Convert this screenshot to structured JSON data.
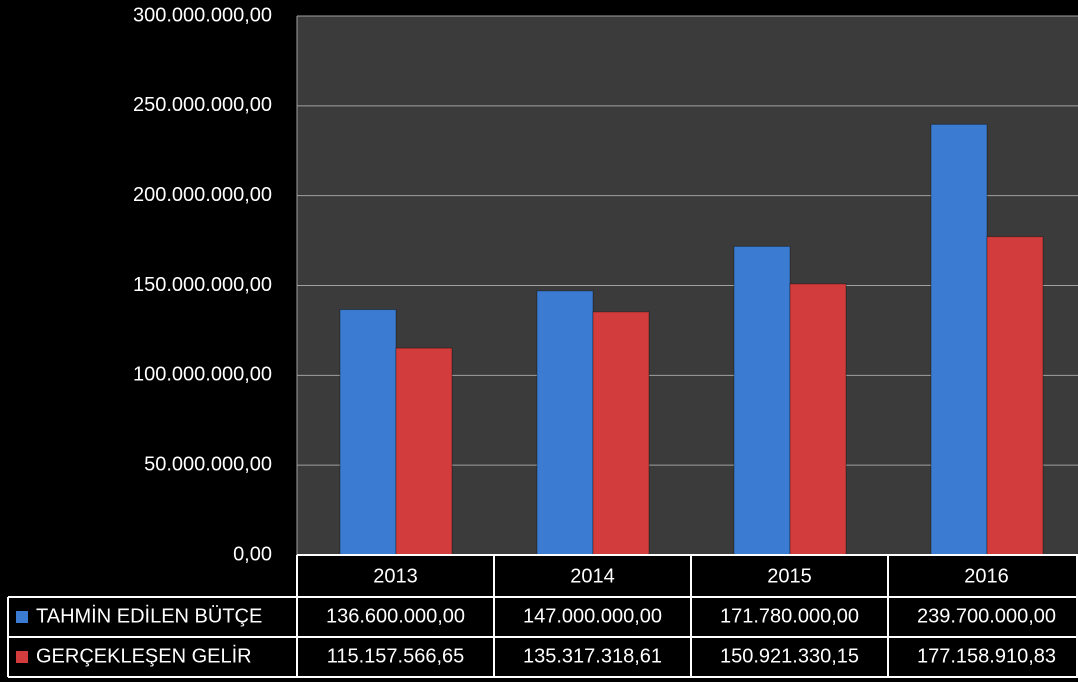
{
  "chart_data": {
    "type": "bar",
    "categories": [
      "2013",
      "2014",
      "2015",
      "2016"
    ],
    "series": [
      {
        "name": "TAHMİN EDİLEN BÜTÇE",
        "color": "#3c7bd2",
        "values": [
          136600000,
          147000000,
          171780000,
          239700000
        ],
        "value_labels": [
          "136.600.000,00",
          "147.000.000,00",
          "171.780.000,00",
          "239.700.000,00"
        ]
      },
      {
        "name": "GERÇEKLEŞEN GELİR",
        "color": "#d23c3c",
        "values": [
          115157566.65,
          135317318.61,
          150921330.15,
          177158910.83
        ],
        "value_labels": [
          "115.157.566,65",
          "135.317.318,61",
          "150.921.330,15",
          "177.158.910,83"
        ]
      }
    ],
    "ylim": [
      0,
      300000000
    ],
    "yticks": [
      {
        "value": 0,
        "label": "0,00"
      },
      {
        "value": 50000000,
        "label": "50.000.000,00"
      },
      {
        "value": 100000000,
        "label": "100.000.000,00"
      },
      {
        "value": 150000000,
        "label": "150.000.000,00"
      },
      {
        "value": 200000000,
        "label": "200.000.000,00"
      },
      {
        "value": 250000000,
        "label": "250.000.000,00"
      },
      {
        "value": 300000000,
        "label": "300.000.000,00"
      }
    ],
    "grid": true
  }
}
